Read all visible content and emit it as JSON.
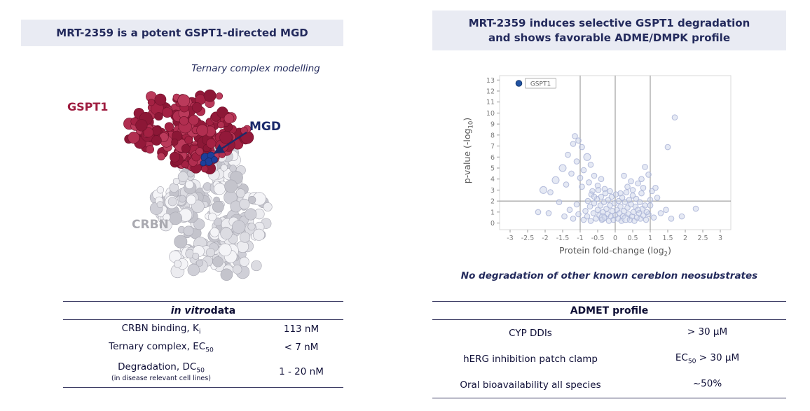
{
  "colors": {
    "navy": "#232a5c",
    "header_bg": "#e9ebf3",
    "gspt1_red": "#9e1c3f",
    "crbn_gray": "#a9a9b0",
    "point_fill": "#ccd3ea",
    "point_stroke": "#a9b3d6",
    "highlight_blue": "#2153a3",
    "ref_line_gray": "#8c8c8c"
  },
  "left": {
    "header": "MRT-2359 is a potent GSPT1-directed MGD",
    "model_caption": "Ternary complex modelling",
    "labels": {
      "gspt1": "GSPT1",
      "mgd": "MGD",
      "crbn": "CRBN"
    },
    "table": {
      "title_italic": "in vitro",
      "title_rest": " data",
      "rows": [
        {
          "label_main": "CRBN binding, K",
          "label_sub": "i",
          "note": "",
          "value": "113 nM"
        },
        {
          "label_main": "Ternary complex, EC",
          "label_sub": "50",
          "note": "",
          "value": "< 7 nM"
        },
        {
          "label_main": "Degradation, DC",
          "label_sub": "50",
          "note": "(in disease relevant cell lines)",
          "value": "1 - 20 nM"
        }
      ]
    }
  },
  "right": {
    "header_line1": "MRT-2359 induces selective GSPT1 degradation",
    "header_line2": "and shows favorable ADME/DMPK profile",
    "plot": {
      "ylabel_pre": "p-value (-log",
      "ylabel_sub": "10",
      "ylabel_post": ")",
      "xlabel_pre": "Protein fold-change (log",
      "xlabel_sub": "2",
      "xlabel_post": ")"
    },
    "caption": "No degradation of other known cereblon neosubstrates",
    "table": {
      "title": "ADMET profile",
      "rows": [
        {
          "label": "CYP DDIs",
          "value_pre": "",
          "value_sub": "",
          "value_main": "> 30 µM"
        },
        {
          "label": "hERG inhibition patch clamp",
          "value_pre": "EC",
          "value_sub": "50",
          "value_main": " > 30 µM"
        },
        {
          "label": "Oral bioavailability all species",
          "value_pre": "",
          "value_sub": "",
          "value_main": "~50%"
        }
      ]
    }
  },
  "chart_data": {
    "type": "scatter",
    "title": "",
    "xlabel": "Protein fold-change (log2)",
    "ylabel": "p-value (-log10)",
    "xlim": [
      -3.3,
      3.3
    ],
    "ylim": [
      -0.6,
      13.4
    ],
    "x_ticks": [
      -3,
      -2.5,
      -2,
      -1.5,
      -1,
      -0.5,
      0,
      0.5,
      1,
      1.5,
      2,
      2.5,
      3
    ],
    "y_ticks": [
      0,
      1,
      2,
      3,
      4,
      5,
      6,
      7,
      8,
      9,
      10,
      11,
      12,
      13
    ],
    "ref_lines": {
      "vertical": [
        -1,
        0,
        1
      ],
      "horizontal": [
        2
      ]
    },
    "grid": false,
    "legend": false,
    "highlight": {
      "label": "GSPT1",
      "x": -2.75,
      "y": 12.7
    },
    "points": [
      [
        -1.15,
        7.9
      ],
      [
        -1.05,
        7.5
      ],
      [
        -1.2,
        7.2
      ],
      [
        -0.95,
        6.9
      ],
      [
        -1.35,
        6.2
      ],
      [
        -0.8,
        6.0,
        5
      ],
      [
        -1.1,
        5.6
      ],
      [
        -0.7,
        5.3
      ],
      [
        -1.5,
        5.0,
        5
      ],
      [
        -0.9,
        4.8
      ],
      [
        -1.25,
        4.5
      ],
      [
        -0.6,
        4.3
      ],
      [
        -1.0,
        4.1
      ],
      [
        -1.7,
        3.9,
        5
      ],
      [
        -0.75,
        3.7
      ],
      [
        -1.4,
        3.5
      ],
      [
        -2.05,
        3.0,
        5
      ],
      [
        -1.85,
        2.8
      ],
      [
        -0.95,
        3.3
      ],
      [
        -1.6,
        1.9
      ],
      [
        -2.2,
        1.0
      ],
      [
        -1.9,
        0.9
      ],
      [
        -1.45,
        0.6
      ],
      [
        -1.3,
        1.2
      ],
      [
        -1.2,
        0.4
      ],
      [
        -1.1,
        1.7
      ],
      [
        -1.05,
        0.8
      ],
      [
        1.7,
        9.6
      ],
      [
        1.5,
        6.9
      ],
      [
        0.85,
        5.1
      ],
      [
        0.95,
        4.4
      ],
      [
        0.75,
        4.0
      ],
      [
        0.65,
        3.6
      ],
      [
        0.8,
        3.2
      ],
      [
        1.05,
        2.9
      ],
      [
        1.15,
        3.2
      ],
      [
        1.0,
        2.1
      ],
      [
        1.2,
        2.3
      ],
      [
        0.95,
        0.8
      ],
      [
        1.0,
        1.6
      ],
      [
        1.1,
        0.5
      ],
      [
        1.3,
        0.9
      ],
      [
        1.45,
        1.2
      ],
      [
        1.6,
        0.4
      ],
      [
        1.9,
        0.6
      ],
      [
        2.3,
        1.3
      ],
      [
        -0.65,
        2.9
      ],
      [
        -0.5,
        3.4
      ],
      [
        -0.4,
        4.0
      ],
      [
        -0.3,
        3.1
      ],
      [
        -0.15,
        2.9
      ],
      [
        0.15,
        2.7
      ],
      [
        0.25,
        4.3
      ],
      [
        0.35,
        3.3
      ],
      [
        0.45,
        3.8
      ],
      [
        0.5,
        3.0
      ],
      [
        -0.9,
        0.3
      ],
      [
        -0.85,
        1.1
      ],
      [
        -0.8,
        0.6
      ],
      [
        -0.78,
        2.0
      ],
      [
        -0.72,
        1.5
      ],
      [
        -0.7,
        0.2
      ],
      [
        -0.68,
        2.6
      ],
      [
        -0.62,
        0.9
      ],
      [
        -0.6,
        1.8
      ],
      [
        -0.55,
        0.4
      ],
      [
        -0.52,
        2.2
      ],
      [
        -0.5,
        1.2
      ],
      [
        -0.48,
        3.0
      ],
      [
        -0.45,
        0.7
      ],
      [
        -0.42,
        1.6
      ],
      [
        -0.4,
        2.4
      ],
      [
        -0.38,
        0.3
      ],
      [
        -0.35,
        1.0
      ],
      [
        -0.32,
        1.9
      ],
      [
        -0.3,
        0.5
      ],
      [
        -0.28,
        2.7
      ],
      [
        -0.25,
        1.3
      ],
      [
        -0.22,
        0.8
      ],
      [
        -0.2,
        2.1
      ],
      [
        -0.18,
        0.2
      ],
      [
        -0.15,
        1.6
      ],
      [
        -0.12,
        0.6
      ],
      [
        -0.1,
        2.4
      ],
      [
        -0.08,
        1.1
      ],
      [
        -0.05,
        0.3
      ],
      [
        -0.02,
        1.8
      ],
      [
        0,
        0.7
      ],
      [
        0.02,
        2.6
      ],
      [
        0.05,
        1.2
      ],
      [
        0.08,
        0.4
      ],
      [
        0.1,
        2.0
      ],
      [
        0.12,
        0.9
      ],
      [
        0.15,
        1.5
      ],
      [
        0.18,
        0.2
      ],
      [
        0.2,
        2.3
      ],
      [
        0.22,
        0.6
      ],
      [
        0.25,
        1.1
      ],
      [
        0.28,
        1.9
      ],
      [
        0.3,
        0.4,
        5.5
      ],
      [
        0.32,
        2.8
      ],
      [
        0.35,
        1.4
      ],
      [
        0.38,
        0.8
      ],
      [
        0.4,
        2.1
      ],
      [
        0.42,
        0.3
      ],
      [
        0.45,
        1.7
      ],
      [
        0.48,
        0.6
      ],
      [
        0.5,
        2.5
      ],
      [
        0.52,
        1.0
      ],
      [
        0.55,
        0.2
      ],
      [
        0.58,
        1.5
      ],
      [
        0.6,
        2.2
      ],
      [
        0.62,
        0.5
      ],
      [
        0.65,
        1.2
      ],
      [
        0.68,
        0.9
      ],
      [
        0.7,
        1.9
      ],
      [
        0.72,
        0.4
      ],
      [
        0.75,
        2.7
      ],
      [
        0.78,
        1.3
      ],
      [
        0.8,
        0.7
      ],
      [
        0.85,
        1.6
      ],
      [
        0.88,
        0.3
      ],
      [
        0.9,
        1.0
      ],
      [
        -0.35,
        0.5,
        5.5
      ],
      [
        -0.6,
        2.4
      ]
    ]
  }
}
